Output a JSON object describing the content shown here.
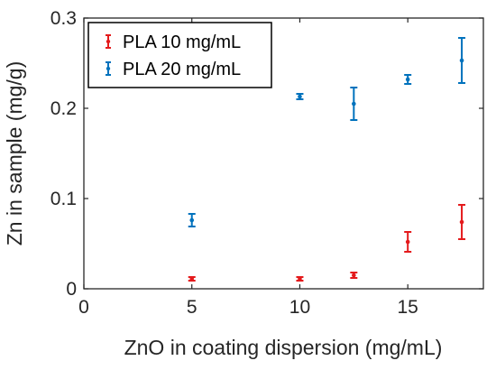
{
  "chart_data": {
    "type": "scatter",
    "xlabel": "ZnO in coating dispersion (mg/mL)",
    "ylabel": "Zn in sample (mg/g)",
    "xlim": [
      0,
      18.5
    ],
    "ylim": [
      0,
      0.3
    ],
    "xticks": [
      0,
      5,
      10,
      15
    ],
    "xtick_labels": [
      "0",
      "5",
      "10",
      "15"
    ],
    "yticks": [
      0,
      0.1,
      0.2,
      0.3
    ],
    "ytick_labels": [
      "0",
      "0.1",
      "0.2",
      "0.3"
    ],
    "grid": false,
    "legend_position": "top-left",
    "series": [
      {
        "name": "PLA 10 mg/mL",
        "color": "#e41a1c",
        "points": [
          {
            "x": 5,
            "y": 0.011,
            "err": 0.002
          },
          {
            "x": 10,
            "y": 0.011,
            "err": 0.002
          },
          {
            "x": 12.5,
            "y": 0.015,
            "err": 0.003
          },
          {
            "x": 15,
            "y": 0.052,
            "err": 0.011
          },
          {
            "x": 17.5,
            "y": 0.074,
            "err": 0.019
          }
        ]
      },
      {
        "name": "PLA 20 mg/mL",
        "color": "#0072bd",
        "points": [
          {
            "x": 5,
            "y": 0.076,
            "err": 0.007
          },
          {
            "x": 10,
            "y": 0.213,
            "err": 0.003
          },
          {
            "x": 12.5,
            "y": 0.205,
            "err": 0.018
          },
          {
            "x": 15,
            "y": 0.232,
            "err": 0.005
          },
          {
            "x": 17.5,
            "y": 0.253,
            "err": 0.025
          }
        ]
      }
    ]
  }
}
